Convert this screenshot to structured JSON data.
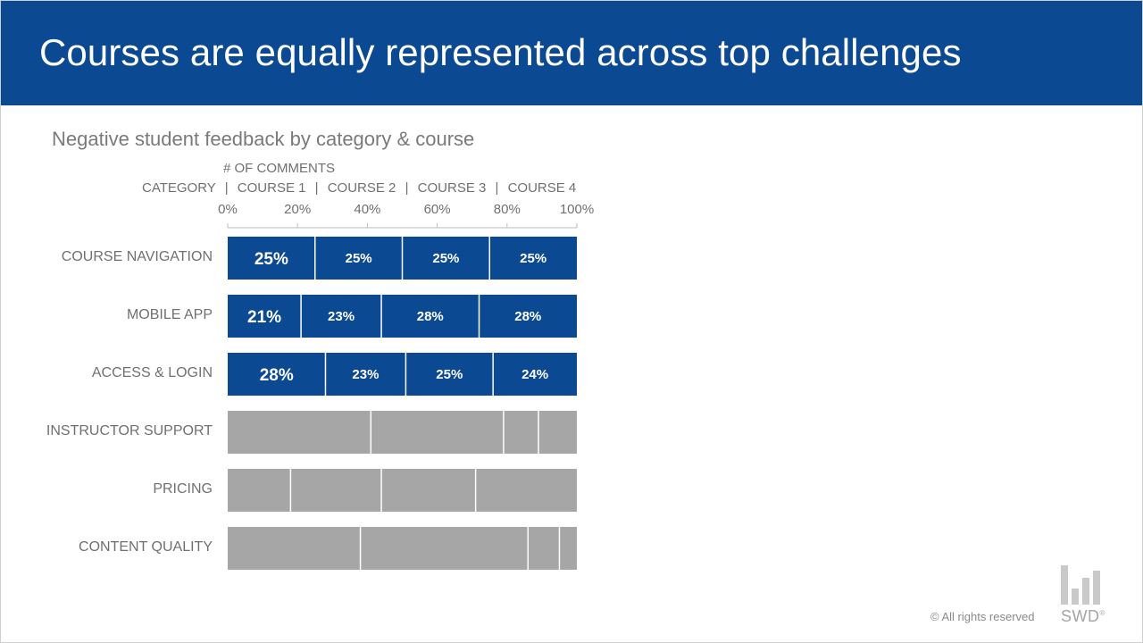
{
  "banner": {
    "title": "Courses are equally represented across top challenges"
  },
  "subtitle": "Negative student feedback by category & course",
  "header": {
    "comments_label": "# OF COMMENTS",
    "category_label": "CATEGORY",
    "separator": "|",
    "courses": [
      "COURSE 1",
      "COURSE 2",
      "COURSE 3",
      "COURSE 4"
    ]
  },
  "colors": {
    "highlight": "#0b4a92",
    "muted": "#a6a6a6",
    "text": "#707070"
  },
  "footer": {
    "copyright": "© All rights reserved",
    "logo_text": "SWD",
    "logo_mark": "®"
  },
  "chart_data": {
    "type": "bar",
    "orientation": "horizontal",
    "stacked": "100%",
    "title": "Negative student feedback by category & course",
    "xlabel": "# OF COMMENTS",
    "ylabel": "CATEGORY",
    "xlim": [
      0,
      100
    ],
    "xticks": [
      "0%",
      "20%",
      "40%",
      "60%",
      "80%",
      "100%"
    ],
    "categories": [
      "COURSE NAVIGATION",
      "MOBILE APP",
      "ACCESS & LOGIN",
      "INSTRUCTOR SUPPORT",
      "PRICING",
      "CONTENT QUALITY"
    ],
    "highlighted": [
      true,
      true,
      true,
      false,
      false,
      false
    ],
    "labeled": [
      true,
      true,
      true,
      false,
      false,
      false
    ],
    "series": [
      {
        "name": "COURSE 1",
        "values": [
          25,
          21,
          28,
          41,
          18,
          38
        ]
      },
      {
        "name": "COURSE 2",
        "values": [
          25,
          23,
          23,
          38,
          26,
          48
        ]
      },
      {
        "name": "COURSE 3",
        "values": [
          25,
          28,
          25,
          10,
          27,
          9
        ]
      },
      {
        "name": "COURSE 4",
        "values": [
          25,
          28,
          24,
          11,
          29,
          5
        ]
      }
    ],
    "legend": "none"
  }
}
